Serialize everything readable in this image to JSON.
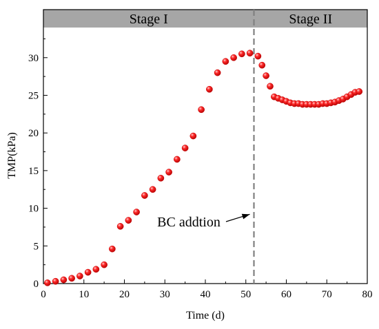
{
  "chart_data": {
    "type": "scatter",
    "xlabel": "Time (d)",
    "ylabel": "TMP(kPa)",
    "xlim": [
      0,
      80
    ],
    "ylim": [
      0,
      34
    ],
    "xticks": [
      "0",
      "10",
      "20",
      "30",
      "40",
      "50",
      "60",
      "70",
      "80"
    ],
    "yticks": [
      "0",
      "5",
      "10",
      "15",
      "20",
      "25",
      "30"
    ],
    "grid": false,
    "marker_color": "#ff1a1a",
    "stage_band_color": "#a6a6a6",
    "divider_x": 52,
    "stages": [
      {
        "label": "Stage I",
        "x_start": 0,
        "x_end": 52
      },
      {
        "label": "Stage II",
        "x_start": 52,
        "x_end": 80
      }
    ],
    "annotation": {
      "text": "BC addtion",
      "arrow_to_x": 52,
      "arrow_to_y": 9.2
    },
    "series": [
      {
        "x": [
          1,
          3,
          5,
          7,
          9,
          11,
          13,
          15,
          17,
          19,
          21,
          23,
          25,
          27,
          29,
          31,
          33,
          35,
          37,
          39,
          41,
          43,
          45,
          47,
          49,
          51,
          53,
          54,
          55,
          56,
          57,
          58,
          59,
          60,
          61,
          62,
          63,
          64,
          65,
          66,
          67,
          68,
          69,
          70,
          71,
          72,
          73,
          74,
          75,
          76,
          77,
          78
        ],
        "y": [
          0.1,
          0.3,
          0.5,
          0.7,
          1.0,
          1.5,
          1.9,
          2.5,
          4.6,
          7.6,
          8.4,
          9.5,
          11.7,
          12.5,
          14.0,
          14.8,
          16.5,
          18.0,
          19.6,
          23.1,
          25.8,
          28.0,
          29.5,
          30.0,
          30.5,
          30.6,
          30.2,
          29.0,
          27.6,
          26.2,
          24.8,
          24.6,
          24.4,
          24.2,
          24.0,
          23.9,
          23.9,
          23.8,
          23.8,
          23.8,
          23.8,
          23.8,
          23.9,
          23.9,
          24.0,
          24.1,
          24.3,
          24.5,
          24.8,
          25.1,
          25.4,
          25.5
        ]
      }
    ]
  }
}
